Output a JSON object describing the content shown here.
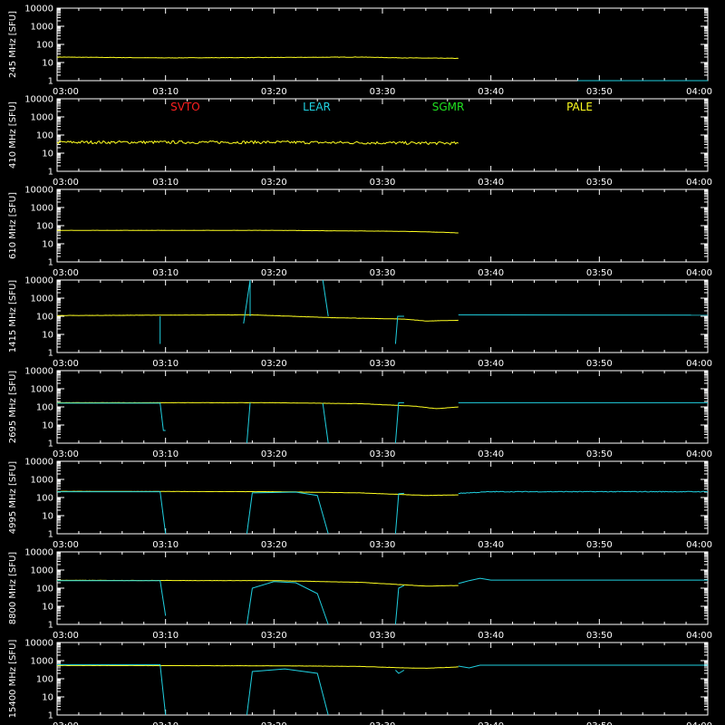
{
  "chart_data": {
    "type": "line",
    "x_range": [
      "03:00",
      "04:00"
    ],
    "x_ticks": [
      "03:00",
      "03:10",
      "03:20",
      "03:30",
      "03:40",
      "03:50",
      "04:00"
    ],
    "y_scale": "log",
    "ylim": [
      1,
      10000
    ],
    "y_ticks": [
      "10000",
      "1000",
      "100",
      "10",
      "1"
    ],
    "legend": [
      {
        "name": "SVTO",
        "color": "#ff2020"
      },
      {
        "name": "LEAR",
        "color": "#20d0e0"
      },
      {
        "name": "SGMR",
        "color": "#20e020"
      },
      {
        "name": "PALE",
        "color": "#ffff20"
      }
    ],
    "panels": [
      {
        "ylabel": "245  MHz  [SFU]",
        "series": [
          {
            "name": "PALE",
            "color": "#ffff20",
            "noise": 0.01,
            "points": [
              [
                "03:00",
                20
              ],
              [
                "03:10",
                18
              ],
              [
                "03:20",
                19
              ],
              [
                "03:28",
                20
              ],
              [
                "03:32",
                18
              ],
              [
                "03:37",
                17
              ]
            ]
          },
          {
            "name": "LEAR",
            "color": "#20d0e0",
            "noise": 0,
            "points": [
              [
                "03:48",
                1
              ],
              [
                "04:00",
                1
              ]
            ]
          }
        ]
      },
      {
        "ylabel": "410  MHz  [SFU]",
        "series": [
          {
            "name": "PALE",
            "color": "#ffff20",
            "noise": 0.08,
            "points": [
              [
                "03:00",
                40
              ],
              [
                "03:20",
                40
              ],
              [
                "03:37",
                35
              ]
            ]
          }
        ]
      },
      {
        "ylabel": "610  MHz  [SFU]",
        "series": [
          {
            "name": "PALE",
            "color": "#ffff20",
            "noise": 0.005,
            "points": [
              [
                "03:00",
                55
              ],
              [
                "03:20",
                55
              ],
              [
                "03:30",
                50
              ],
              [
                "03:34",
                46
              ],
              [
                "03:37",
                40
              ]
            ]
          }
        ]
      },
      {
        "ylabel": "1415  MHz  [SFU]",
        "series": [
          {
            "name": "PALE",
            "color": "#ffff20",
            "noise": 0.005,
            "points": [
              [
                "03:00",
                110
              ],
              [
                "03:18",
                120
              ],
              [
                "03:25",
                85
              ],
              [
                "03:32",
                70
              ],
              [
                "03:34",
                55
              ],
              [
                "03:37",
                60
              ]
            ]
          },
          {
            "name": "LEAR",
            "color": "#20d0e0",
            "noise": 0,
            "points": [
              [
                "03:37",
                120
              ],
              [
                "04:00",
                115
              ]
            ]
          },
          {
            "name": "LEAR",
            "color": "#20d0e0",
            "noise": 0,
            "points": [
              [
                "03:09.5",
                100
              ],
              [
                "03:09.5",
                3
              ]
            ]
          },
          {
            "name": "LEAR",
            "color": "#20d0e0",
            "noise": 0,
            "points": [
              [
                "03:17.2",
                40
              ],
              [
                "03:17.8",
                10000
              ],
              [
                "03:17.8",
                100
              ]
            ]
          },
          {
            "name": "LEAR",
            "color": "#20d0e0",
            "noise": 0,
            "points": [
              [
                "03:24.5",
                10000
              ],
              [
                "03:25",
                100
              ]
            ]
          },
          {
            "name": "LEAR",
            "color": "#20d0e0",
            "noise": 0,
            "points": [
              [
                "03:31.2",
                3
              ],
              [
                "03:31.4",
                100
              ],
              [
                "03:32",
                100
              ]
            ]
          }
        ]
      },
      {
        "ylabel": "2695  MHz  [SFU]",
        "series": [
          {
            "name": "PALE",
            "color": "#ffff20",
            "noise": 0.005,
            "points": [
              [
                "03:00",
                170
              ],
              [
                "03:20",
                170
              ],
              [
                "03:28",
                150
              ],
              [
                "03:33",
                110
              ],
              [
                "03:35",
                80
              ],
              [
                "03:37",
                100
              ]
            ]
          },
          {
            "name": "LEAR",
            "color": "#20d0e0",
            "noise": 0,
            "points": [
              [
                "03:00",
                160
              ],
              [
                "03:09.5",
                160
              ],
              [
                "03:09.8",
                5
              ],
              [
                "03:10",
                5
              ]
            ]
          },
          {
            "name": "LEAR",
            "color": "#20d0e0",
            "noise": 0,
            "points": [
              [
                "03:17.5",
                1
              ],
              [
                "03:17.8",
                170
              ]
            ]
          },
          {
            "name": "LEAR",
            "color": "#20d0e0",
            "noise": 0,
            "points": [
              [
                "03:24.5",
                160
              ],
              [
                "03:25",
                1
              ]
            ]
          },
          {
            "name": "LEAR",
            "color": "#20d0e0",
            "noise": 0,
            "points": [
              [
                "03:31.2",
                1
              ],
              [
                "03:31.5",
                170
              ],
              [
                "03:32",
                170
              ]
            ]
          },
          {
            "name": "LEAR",
            "color": "#20d0e0",
            "noise": 0,
            "points": [
              [
                "03:37",
                170
              ],
              [
                "04:00",
                170
              ]
            ]
          }
        ]
      },
      {
        "ylabel": "4995  MHz  [SFU]",
        "series": [
          {
            "name": "PALE",
            "color": "#ffff20",
            "noise": 0.005,
            "points": [
              [
                "03:00",
                220
              ],
              [
                "03:20",
                210
              ],
              [
                "03:28",
                180
              ],
              [
                "03:34",
                130
              ],
              [
                "03:37",
                140
              ]
            ]
          },
          {
            "name": "LEAR",
            "color": "#20d0e0",
            "noise": 0,
            "points": [
              [
                "03:00",
                210
              ],
              [
                "03:09.5",
                210
              ],
              [
                "03:10",
                1
              ]
            ]
          },
          {
            "name": "LEAR",
            "color": "#20d0e0",
            "noise": 0,
            "points": [
              [
                "03:17.5",
                1
              ],
              [
                "03:18",
                180
              ],
              [
                "03:22",
                200
              ],
              [
                "03:24",
                130
              ],
              [
                "03:25",
                1
              ]
            ]
          },
          {
            "name": "LEAR",
            "color": "#20d0e0",
            "noise": 0,
            "points": [
              [
                "03:31.2",
                1
              ],
              [
                "03:31.5",
                160
              ],
              [
                "03:32",
                170
              ]
            ]
          },
          {
            "name": "LEAR",
            "color": "#20d0e0",
            "noise": 0.02,
            "points": [
              [
                "03:37",
                170
              ],
              [
                "03:40",
                210
              ],
              [
                "04:00",
                210
              ]
            ]
          }
        ]
      },
      {
        "ylabel": "8800  MHz  [SFU]",
        "series": [
          {
            "name": "PALE",
            "color": "#ffff20",
            "noise": 0.005,
            "points": [
              [
                "03:00",
                270
              ],
              [
                "03:20",
                260
              ],
              [
                "03:28",
                210
              ],
              [
                "03:34",
                130
              ],
              [
                "03:37",
                140
              ]
            ]
          },
          {
            "name": "LEAR",
            "color": "#20d0e0",
            "noise": 0,
            "points": [
              [
                "03:00",
                260
              ],
              [
                "03:09.5",
                260
              ],
              [
                "03:10",
                3
              ]
            ]
          },
          {
            "name": "LEAR",
            "color": "#20d0e0",
            "noise": 0,
            "points": [
              [
                "03:17.5",
                1
              ],
              [
                "03:18",
                100
              ],
              [
                "03:20",
                230
              ],
              [
                "03:22",
                200
              ],
              [
                "03:24",
                50
              ],
              [
                "03:25",
                1
              ]
            ]
          },
          {
            "name": "LEAR",
            "color": "#20d0e0",
            "noise": 0,
            "points": [
              [
                "03:31.2",
                1
              ],
              [
                "03:31.5",
                100
              ],
              [
                "03:32",
                140
              ]
            ]
          },
          {
            "name": "LEAR",
            "color": "#20d0e0",
            "noise": 0,
            "points": [
              [
                "03:37",
                180
              ],
              [
                "03:38",
                260
              ],
              [
                "03:39",
                350
              ],
              [
                "03:40",
                280
              ],
              [
                "04:00",
                280
              ]
            ]
          }
        ]
      },
      {
        "ylabel": "15400  MHz  [SFU]",
        "series": [
          {
            "name": "PALE",
            "color": "#ffff20",
            "noise": 0.005,
            "points": [
              [
                "03:00",
                540
              ],
              [
                "03:20",
                520
              ],
              [
                "03:28",
                480
              ],
              [
                "03:32",
                400
              ],
              [
                "03:34",
                380
              ],
              [
                "03:37",
                450
              ]
            ]
          },
          {
            "name": "LEAR",
            "color": "#20d0e0",
            "noise": 0,
            "points": [
              [
                "03:00",
                600
              ],
              [
                "03:09.5",
                600
              ],
              [
                "03:10",
                1
              ]
            ]
          },
          {
            "name": "LEAR",
            "color": "#20d0e0",
            "noise": 0,
            "points": [
              [
                "03:17.5",
                1
              ],
              [
                "03:18",
                250
              ],
              [
                "03:21",
                350
              ],
              [
                "03:24",
                200
              ],
              [
                "03:25",
                1
              ]
            ]
          },
          {
            "name": "LEAR",
            "color": "#20d0e0",
            "noise": 0,
            "points": [
              [
                "03:31.2",
                300
              ],
              [
                "03:31.5",
                200
              ],
              [
                "03:32",
                300
              ]
            ]
          },
          {
            "name": "LEAR",
            "color": "#20d0e0",
            "noise": 0,
            "points": [
              [
                "03:37",
                500
              ],
              [
                "03:38",
                400
              ],
              [
                "03:39",
                560
              ],
              [
                "04:00",
                560
              ]
            ]
          }
        ]
      }
    ]
  }
}
